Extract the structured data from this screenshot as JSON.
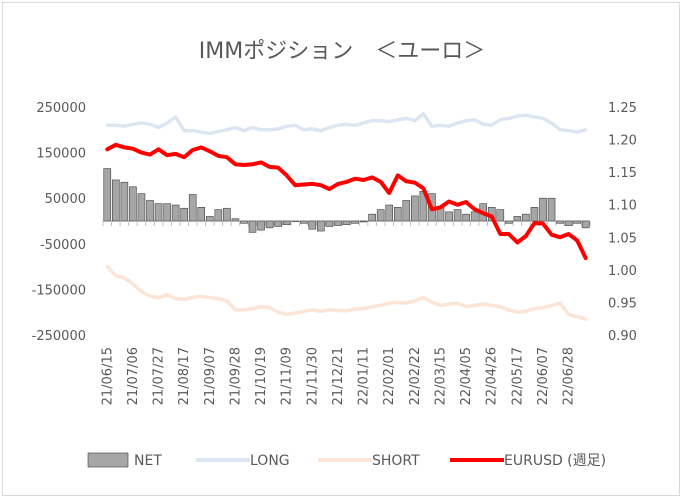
{
  "chart_data": {
    "type": "bar+line",
    "title": "IMMポジション　＜ユーロ＞",
    "left_axis": {
      "ticks": [
        "250000",
        "150000",
        "50000",
        "-50000",
        "-150000",
        "-250000"
      ],
      "range": [
        -250000,
        250000
      ]
    },
    "right_axis": {
      "ticks": [
        "1.25",
        "1.20",
        "1.15",
        "1.10",
        "1.05",
        "1.00",
        "0.95",
        "0.90"
      ],
      "range": [
        0.9,
        1.25
      ]
    },
    "x_labels": [
      "21/06/15",
      "21/07/06",
      "21/07/27",
      "21/08/17",
      "21/09/07",
      "21/09/28",
      "21/10/19",
      "21/11/09",
      "21/11/30",
      "21/12/21",
      "22/01/11",
      "22/02/01",
      "22/02/22",
      "22/03/15",
      "22/04/05",
      "22/04/26",
      "22/05/17",
      "22/06/07",
      "22/06/28"
    ],
    "series": [
      {
        "name": "NET",
        "axis": "left",
        "kind": "bar",
        "color": "#a6a6a6",
        "values": [
          115000,
          90000,
          85000,
          75000,
          60000,
          45000,
          38000,
          38000,
          35000,
          28000,
          58000,
          30000,
          10000,
          25000,
          28000,
          5000,
          -5000,
          -25000,
          -20000,
          -15000,
          -12000,
          -8000,
          0,
          -5000,
          -18000,
          -22000,
          -12000,
          -10000,
          -8000,
          -5000,
          -2000,
          15000,
          25000,
          35000,
          30000,
          45000,
          55000,
          65000,
          60000,
          30000,
          20000,
          25000,
          15000,
          20000,
          38000,
          30000,
          25000,
          -5000,
          10000,
          15000,
          30000,
          50000,
          50000,
          -5000,
          -10000,
          -5000,
          -15000
        ]
      },
      {
        "name": "LONG",
        "axis": "left",
        "kind": "line",
        "color": "#dce6f2",
        "values": [
          210000,
          210000,
          208000,
          212000,
          215000,
          212000,
          205000,
          215000,
          228000,
          198000,
          198000,
          195000,
          192000,
          196000,
          200000,
          205000,
          198000,
          205000,
          200000,
          200000,
          202000,
          208000,
          210000,
          200000,
          202000,
          198000,
          205000,
          210000,
          212000,
          210000,
          215000,
          220000,
          220000,
          218000,
          222000,
          225000,
          220000,
          235000,
          208000,
          210000,
          208000,
          215000,
          220000,
          222000,
          212000,
          210000,
          222000,
          225000,
          230000,
          232000,
          228000,
          225000,
          215000,
          200000,
          198000,
          195000,
          200000
        ]
      },
      {
        "name": "SHORT",
        "axis": "left",
        "kind": "line",
        "color": "#fbe5d6",
        "values": [
          -100000,
          -120000,
          -125000,
          -138000,
          -155000,
          -165000,
          -168000,
          -162000,
          -170000,
          -172000,
          -168000,
          -165000,
          -168000,
          -170000,
          -175000,
          -195000,
          -195000,
          -192000,
          -188000,
          -190000,
          -200000,
          -205000,
          -202000,
          -198000,
          -195000,
          -198000,
          -195000,
          -196000,
          -197000,
          -193000,
          -192000,
          -188000,
          -185000,
          -180000,
          -178000,
          -180000,
          -175000,
          -168000,
          -178000,
          -185000,
          -182000,
          -180000,
          -188000,
          -185000,
          -182000,
          -185000,
          -188000,
          -195000,
          -200000,
          -198000,
          -192000,
          -190000,
          -185000,
          -180000,
          -205000,
          -210000,
          -215000
        ]
      },
      {
        "name": "EURUSD (週足)",
        "axis": "right",
        "kind": "line",
        "color": "#ff0000",
        "values": [
          1.185,
          1.192,
          1.188,
          1.186,
          1.18,
          1.177,
          1.185,
          1.176,
          1.178,
          1.173,
          1.184,
          1.188,
          1.182,
          1.175,
          1.173,
          1.162,
          1.161,
          1.162,
          1.165,
          1.158,
          1.157,
          1.145,
          1.13,
          1.131,
          1.132,
          1.13,
          1.124,
          1.132,
          1.135,
          1.14,
          1.138,
          1.142,
          1.135,
          1.118,
          1.145,
          1.136,
          1.134,
          1.125,
          1.093,
          1.096,
          1.105,
          1.1,
          1.104,
          1.093,
          1.087,
          1.082,
          1.055,
          1.055,
          1.042,
          1.052,
          1.072,
          1.071,
          1.054,
          1.05,
          1.055,
          1.045,
          1.018
        ]
      }
    ],
    "legend": {
      "position": "bottom",
      "entries": [
        "NET",
        "LONG",
        "SHORT",
        "EURUSD (週足)"
      ]
    }
  }
}
